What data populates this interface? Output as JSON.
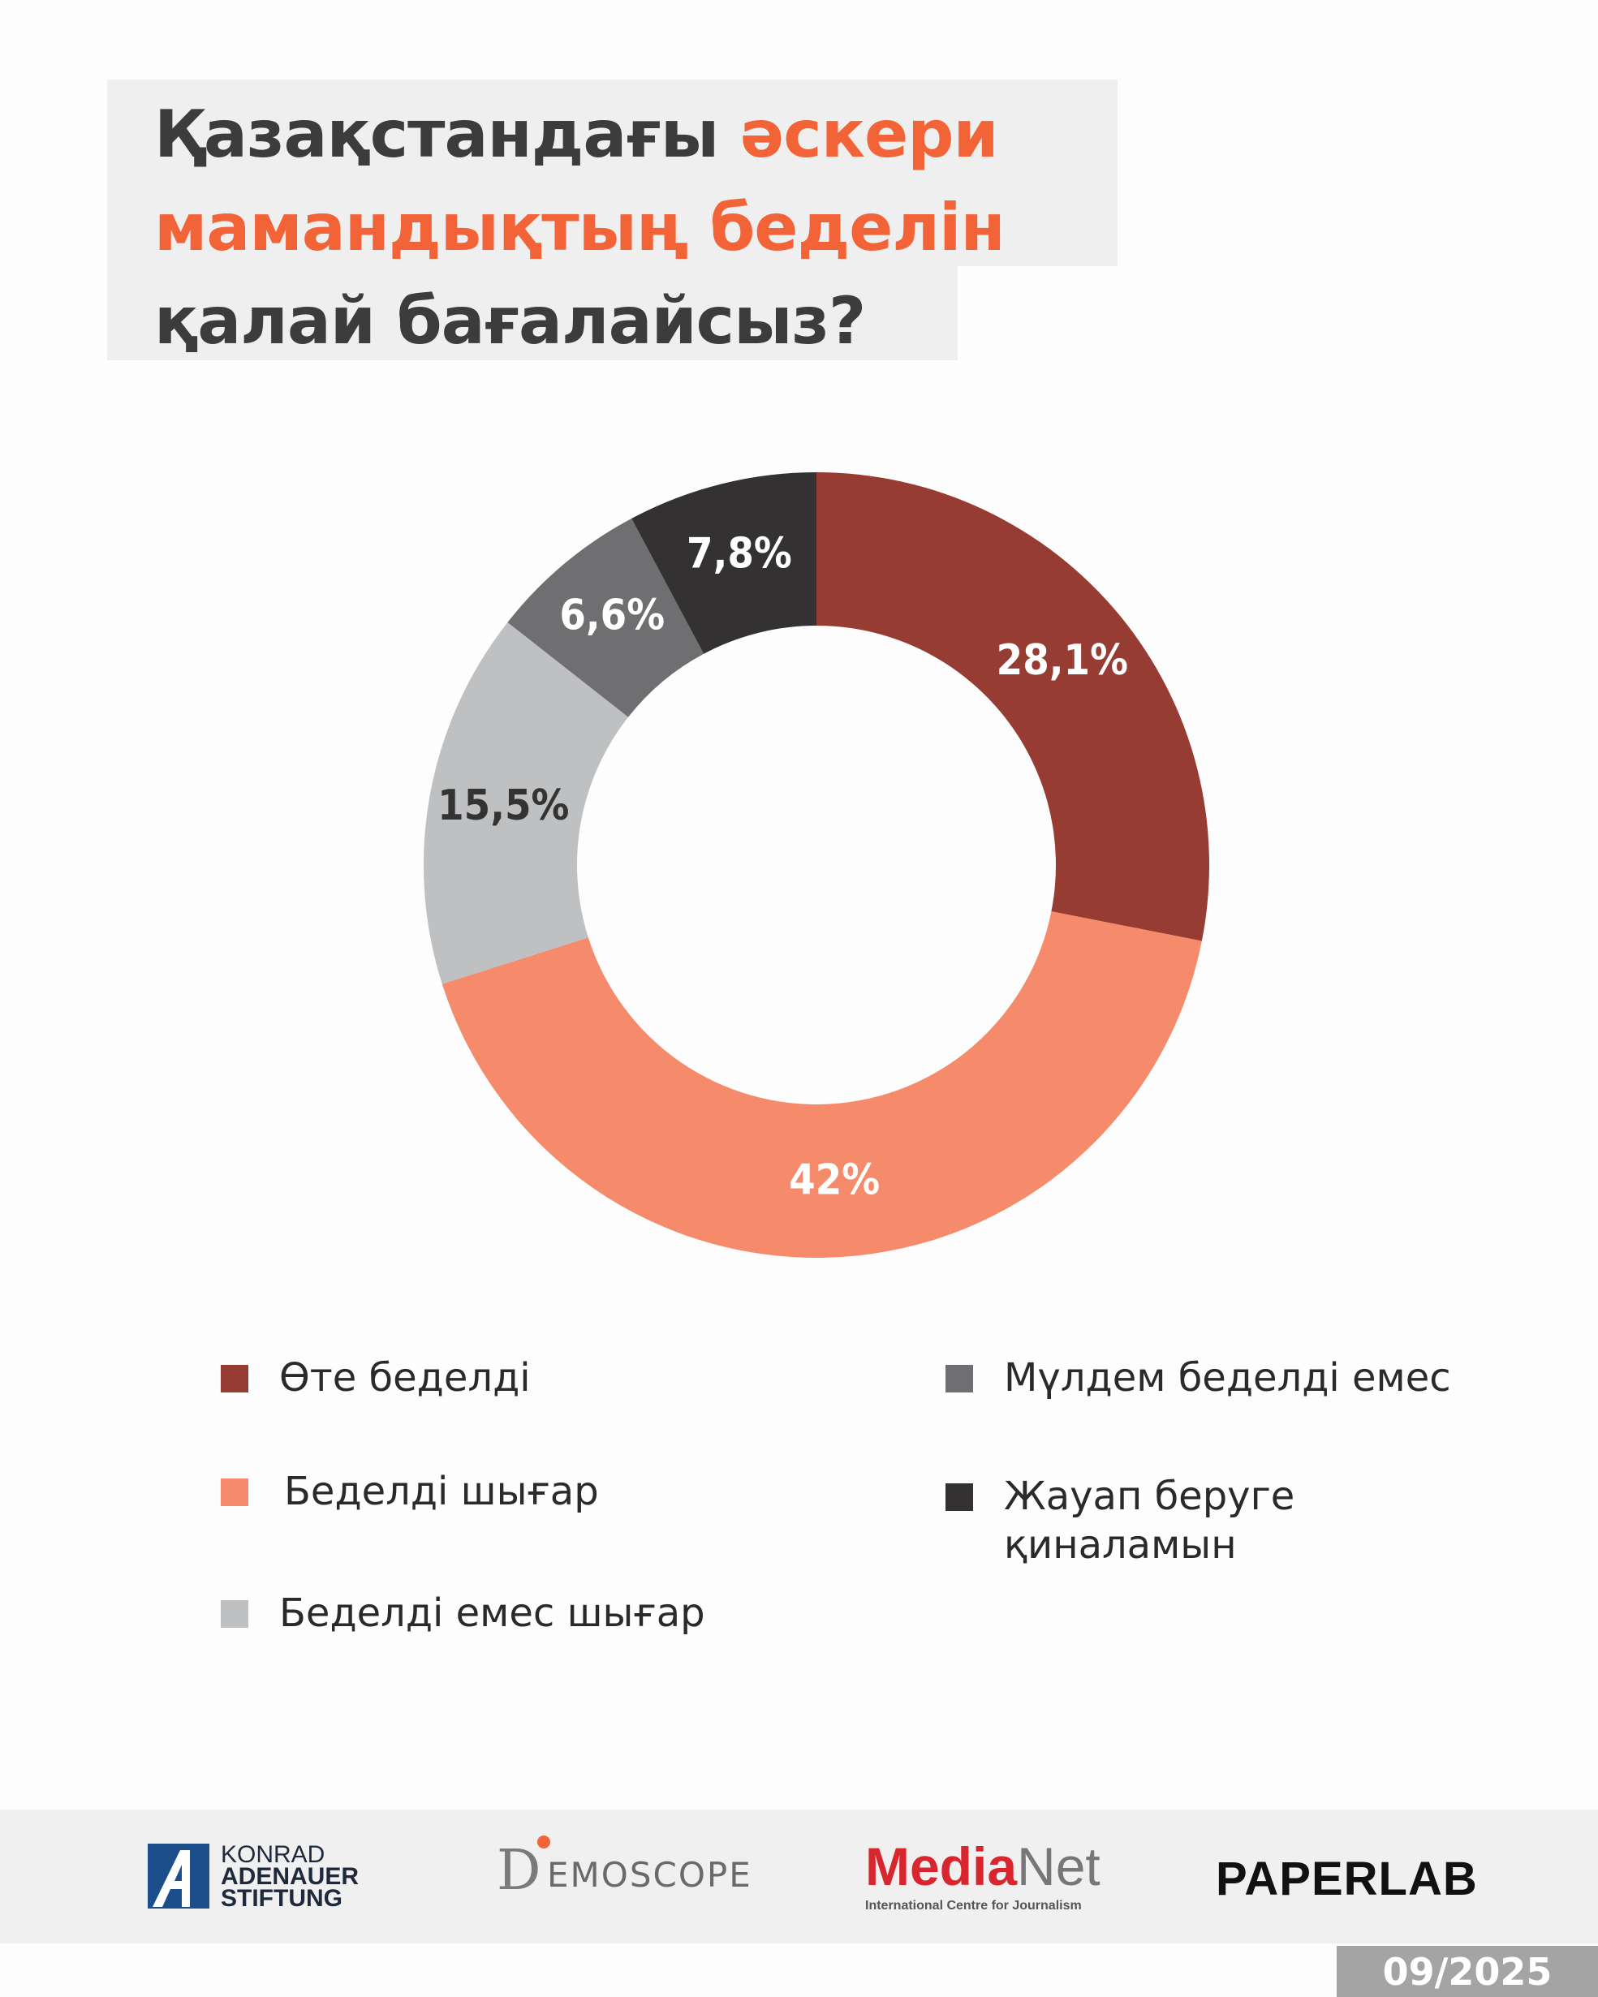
{
  "title": {
    "line1_plain": "Қазақстандағы ",
    "line1_accent": "әскери",
    "line2_accent": "мамандықтың беделін",
    "line3_plain": "қалай бағалайсыз?"
  },
  "colors": {
    "accent": "#f26338",
    "slices": [
      "#963c33",
      "#f58b6b",
      "#bfc0c2",
      "#6f6f72",
      "#333132"
    ],
    "label_text": [
      "#ffffff",
      "#ffffff",
      "#333333",
      "#ffffff",
      "#ffffff"
    ]
  },
  "chart_data": {
    "type": "pie",
    "variant": "donut",
    "categories": [
      "Өте беделді",
      "Беделді шығар",
      "Беделді емес шығар",
      "Мүлдем беделді емес",
      "Жауап беруге қиналамын"
    ],
    "values": [
      28.1,
      42,
      15.5,
      6.6,
      7.8
    ],
    "data_labels": [
      "28,1%",
      "42%",
      "15,5%",
      "6,6%",
      "7,8%"
    ],
    "start": "12 o'clock",
    "direction": "clockwise",
    "legend_position": "bottom"
  },
  "legend": [
    {
      "label": "Өте беделді"
    },
    {
      "label": "Беделді шығар"
    },
    {
      "label": "Беделді емес шығар"
    },
    {
      "label": "Мүлдем беделді емес"
    },
    {
      "label": "Жауап беруге қиналамын"
    }
  ],
  "footer": {
    "kas": {
      "line1": "KONRAD",
      "line2": "ADENAUER",
      "line3": "STIFTUNG"
    },
    "demoscope": {
      "mark": "D",
      "text": "EMOSCOPE"
    },
    "medianet": {
      "media": "Media",
      "net": "Net",
      "sub": "International Centre for Journalism"
    },
    "paperlab": "PAPERLAB",
    "date": "09/2025"
  }
}
